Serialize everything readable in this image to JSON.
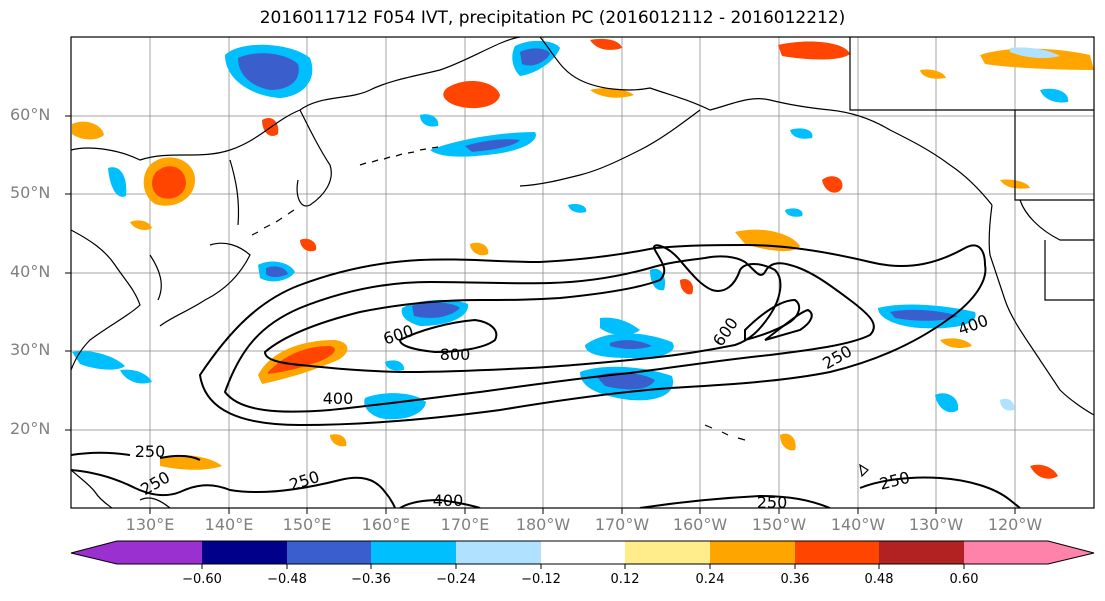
{
  "title": "2016011712 F054 IVT, precipitation PC (2016012112 - 2016012212)",
  "lat_labels": [
    "60°N",
    "50°N",
    "40°N",
    "30°N",
    "20°N"
  ],
  "lon_labels": [
    "130°E",
    "140°E",
    "150°E",
    "160°E",
    "170°E",
    "180°W",
    "170°W",
    "160°W",
    "150°W",
    "140°W",
    "130°W",
    "120°W"
  ],
  "contour_labels": {
    "c600a": "600",
    "c800": "800",
    "c600b": "600",
    "c400a": "400",
    "c400b": "400",
    "c250a": "250",
    "c250b": "250",
    "c250c": "250",
    "c250d": "250",
    "c400c": "400",
    "c250e": "250"
  },
  "colorbar": {
    "ticks": [
      "−0.60",
      "−0.48",
      "−0.36",
      "−0.24",
      "−0.12",
      "0.12",
      "0.24",
      "0.36",
      "0.48",
      "0.60"
    ],
    "colors": [
      "#9b30d0",
      "#00008b",
      "#3a5fcd",
      "#00bfff",
      "#b0e2ff",
      "#ffffff",
      "#ffec8b",
      "#ffa500",
      "#ff4500",
      "#b22222",
      "#ff82ab"
    ]
  },
  "colors": {
    "grid": "#808080",
    "coast": "#000000",
    "ivt_contour": "#000000"
  }
}
